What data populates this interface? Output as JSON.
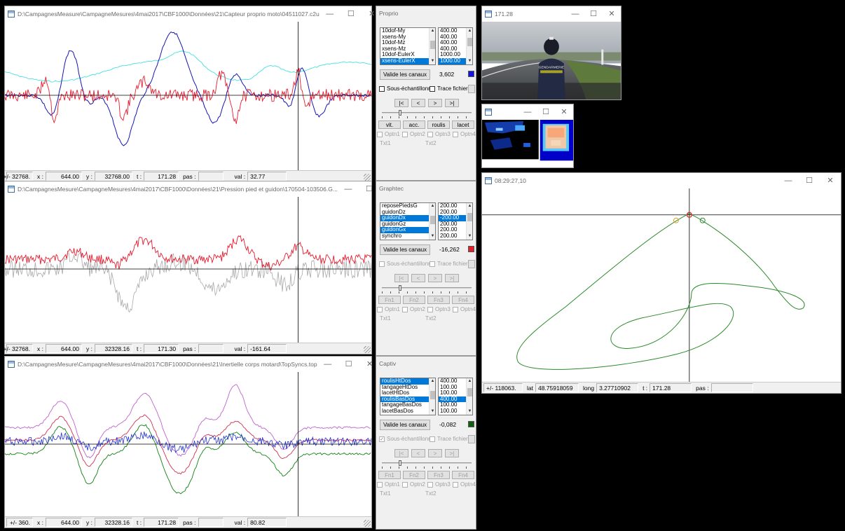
{
  "windows": {
    "proprio_plot": {
      "title": "D:\\CampagnesMeasure\\CampagneMesures\\4mai2017\\CBF1000\\Données\\21\\Capteur proprio moto\\04511027.c2u",
      "status": {
        "range": "+/- 32768.",
        "x_label": "x :",
        "x": "644.00",
        "y_label": "y :",
        "y": "32768.00",
        "t_label": "t :",
        "t": "171.28",
        "pas_label": "pas :",
        "pas": "",
        "val_label": "val :",
        "val": "32.77"
      }
    },
    "pression_plot": {
      "title": "D:\\CampagnesMesure\\CampagneMesures\\4mai2017\\CBF1000\\Données\\21\\Pression pied et guidon\\170504-103506.G...",
      "status": {
        "range": "+/- 32768.",
        "x_label": "x :",
        "x": "644.00",
        "y_label": "y :",
        "y": "32328.16",
        "t_label": "t :",
        "t": "171.30",
        "pas_label": "pas :",
        "pas": "",
        "val_label": "val :",
        "val": "-161.64"
      }
    },
    "inertielle_plot": {
      "title": "D:\\CampagnesMesure\\CampagneMesures\\4mai2017\\CBF1000\\Données\\21\\Inertielle corps motard\\TopSyncs.top",
      "status": {
        "range": "+/- 360.",
        "x_label": "x :",
        "x": "644.00",
        "y_label": "y :",
        "y": "32328.16",
        "t_label": "t :",
        "t": "171.28",
        "pas_label": "pas :",
        "pas": "",
        "val_label": "val :",
        "val": "80.82"
      }
    },
    "video": {
      "title": "171.28"
    },
    "thermal": {
      "title": ""
    },
    "gps": {
      "title": "08:29:27,10",
      "status": {
        "range": "+/- 118063.",
        "lat_label": "lat",
        "lat": "48.75918059",
        "long_label": "long",
        "long": "3.27710902",
        "t_label": "t :",
        "t": "171.28",
        "pas_label": "pas :",
        "pas": ""
      }
    }
  },
  "panels": {
    "proprio": {
      "title": "Proprio",
      "channels": [
        "10dof-My",
        "xsens-My",
        "10dof-Mz",
        "xsens-Mz",
        "10dof-EulerX",
        "xsens-EulerX"
      ],
      "channel_selected": [
        false,
        false,
        false,
        false,
        false,
        true
      ],
      "scales": [
        "400.00",
        "400.00",
        "400.00",
        "400.00",
        "1000.00",
        "1000.00"
      ],
      "scale_selected": [
        false,
        false,
        false,
        false,
        false,
        true
      ],
      "validate_label": "Valide les canaux",
      "value": "3,602",
      "swatch_color": "#1515e0",
      "subsample_label": "Sous-échantillonne",
      "trace_label": "Trace fichier",
      "nav": [
        "|<",
        "<",
        ">",
        ">|"
      ],
      "fn": [
        "vit.",
        "acc.",
        "roulis",
        "lacet"
      ],
      "opts": [
        "Optn1",
        "Optn2",
        "Optn3",
        "Optn4"
      ],
      "txt1": "Txt1",
      "txt2": "Txt2"
    },
    "graphtec": {
      "title": "Graphtec",
      "channels": [
        "reposePiedsG",
        "guidonDz",
        "guidonDx",
        "guidonGz",
        "guidonGx",
        "synchro"
      ],
      "channel_selected": [
        false,
        false,
        true,
        false,
        true,
        false
      ],
      "scales": [
        "200.00",
        "200.00",
        "-200.00",
        "200.00",
        "200.00",
        "200.00"
      ],
      "scale_selected": [
        false,
        false,
        true,
        false,
        false,
        false
      ],
      "validate_label": "Valide les canaux",
      "value": "-16,262",
      "swatch_color": "#e0202a",
      "subsample_label": "Sous-échantillonne",
      "trace_label": "Trace fichier",
      "nav": [
        "|<",
        "<",
        ">",
        ">|"
      ],
      "fn": [
        "Fn1",
        "Fn2",
        "Fn3",
        "Fn4"
      ],
      "opts": [
        "Optn1",
        "Optn2",
        "Optn3",
        "Optn4"
      ],
      "txt1": "Txt1",
      "txt2": "Txt2"
    },
    "captiv": {
      "title": "Captiv",
      "channels": [
        "roulisHtDos",
        "tangageHtDos",
        "lacetHtDos",
        "roulisBasDos",
        "tangageBasDos",
        "lacetBasDos"
      ],
      "channel_selected": [
        true,
        false,
        false,
        true,
        false,
        false
      ],
      "scales": [
        "400.00",
        "100.00",
        "100.00",
        "400.00",
        "100.00",
        "100.00"
      ],
      "scale_selected": [
        false,
        false,
        false,
        true,
        false,
        false
      ],
      "validate_label": "Valide les canaux",
      "value": "-0,082",
      "swatch_color": "#106010",
      "subsample_label": "Sous-échantillonne",
      "trace_label": "Trace fichier",
      "nav": [
        "|<",
        "<",
        ">",
        ">|"
      ],
      "fn": [
        "Fn1",
        "Fn2",
        "Fn3",
        "Fn4"
      ],
      "opts": [
        "Optn1",
        "Optn2",
        "Optn3",
        "Optn4"
      ],
      "txt1": "Txt1",
      "txt2": "Txt2"
    }
  },
  "colors": {
    "blue_trace": "#1414b4",
    "cyan_trace": "#40e0e0",
    "red_trace": "#e8192c",
    "gray_trace": "#a8a8a8",
    "violet_trace": "#c060d0",
    "crimson_trace": "#d03050",
    "green_trace": "#108010",
    "navy_trace": "#2030d0",
    "track_green": "#2a8a2a"
  },
  "gps_markers": [
    "orange-circle",
    "red-circle",
    "green-circle"
  ],
  "video_overlay": "GENDARMERIE"
}
